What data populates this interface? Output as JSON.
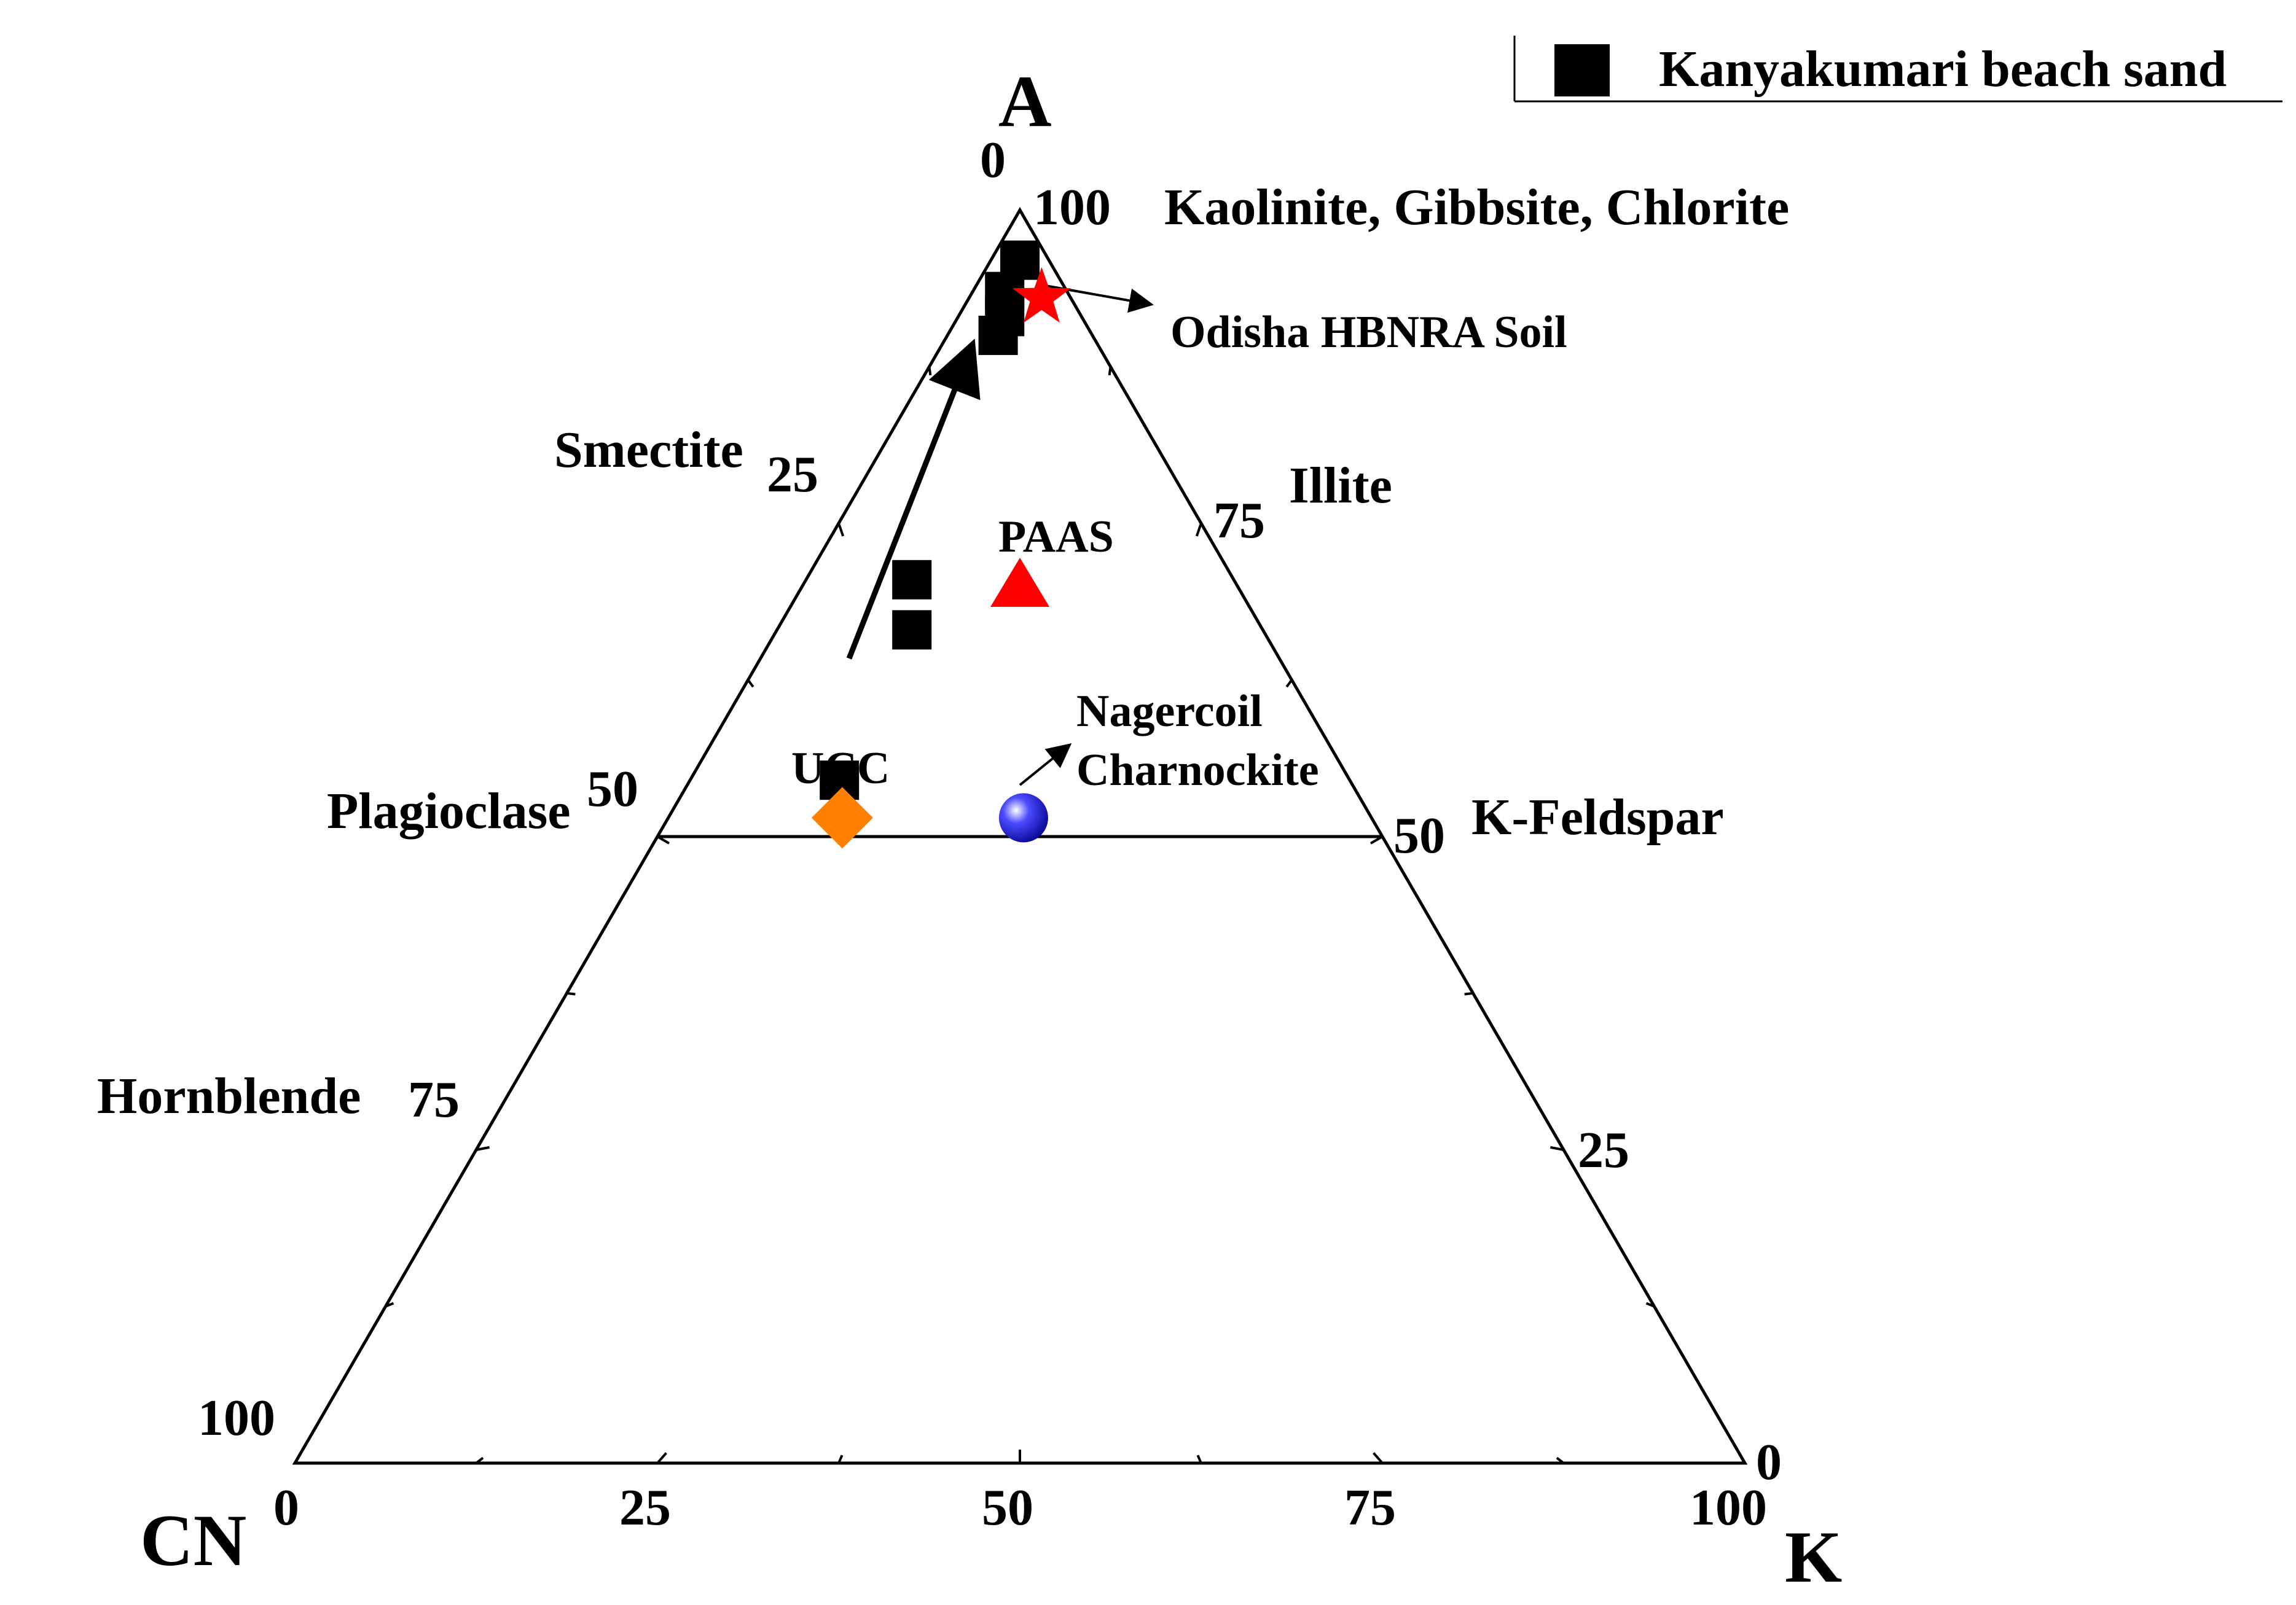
{
  "chart_data": {
    "type": "scatter",
    "subtype": "ternary",
    "vertices": {
      "top": "A",
      "left": "CN",
      "right": "K"
    },
    "legend": {
      "placement": "top-right",
      "entries": [
        {
          "name": "Kanyakumari beach sand",
          "marker": "square",
          "color": "#000000"
        }
      ]
    },
    "tick_labels": {
      "left_edge": [
        "100",
        "75",
        "50",
        "25",
        "0"
      ],
      "right_edge": [
        "0",
        "25",
        "50",
        "75",
        "100"
      ],
      "bottom_edge": [
        "0",
        "25",
        "50",
        "75",
        "100"
      ]
    },
    "edge_labels": [
      "Kaolinite, Gibbsite, Chlorite",
      "Smectite",
      "Illite",
      "Plagioclase",
      "K-Feldspar",
      "Hornblende"
    ],
    "series": [
      {
        "name": "Kanyakumari beach sand",
        "marker": "square",
        "color": "#000000",
        "points": [
          {
            "A": 96,
            "CN": 2,
            "K": 2
          },
          {
            "A": 93.5,
            "CN": 4.3,
            "K": 2.2
          },
          {
            "A": 91.5,
            "CN": 5.3,
            "K": 3.2
          },
          {
            "A": 90,
            "CN": 6.5,
            "K": 3.5
          },
          {
            "A": 70.5,
            "CN": 22.2,
            "K": 7.3
          },
          {
            "A": 66.5,
            "CN": 24.2,
            "K": 9.3
          },
          {
            "A": 54.5,
            "CN": 35.2,
            "K": 10.3
          }
        ]
      },
      {
        "name": "Odisha HBNRA Soil",
        "marker": "star",
        "color": "#ff0000",
        "points": [
          {
            "A": 93,
            "CN": 2,
            "K": 5
          }
        ]
      },
      {
        "name": "PAAS",
        "marker": "triangle",
        "color": "#ff0000",
        "points": [
          {
            "A": 70,
            "CN": 15,
            "K": 15
          }
        ]
      },
      {
        "name": "UCC",
        "marker": "diamond",
        "color": "#ff8000",
        "points": [
          {
            "A": 51.5,
            "CN": 36.5,
            "K": 12
          }
        ]
      },
      {
        "name": "Nagercoil Charnockite",
        "marker": "sphere",
        "color": "#1a1aff",
        "points": [
          {
            "A": 51.5,
            "CN": 24,
            "K": 24.5
          }
        ]
      }
    ],
    "annotations": [
      "Odisha HBNRA Soil",
      "PAAS",
      "UCC",
      "Nagercoil",
      "Charnockite"
    ]
  },
  "labels": {
    "vertex_a": "A",
    "vertex_cn": "CN",
    "vertex_k": "K",
    "legend_text": "Kanyakumari beach sand",
    "kaolinite": "Kaolinite, Gibbsite, Chlorite",
    "smectite": "Smectite",
    "illite": "Illite",
    "plagioclase": "Plagioclase",
    "kfeldspar": "K-Feldspar",
    "hornblende": "Hornblende",
    "odisha": "Odisha HBNRA Soil",
    "paas": "PAAS",
    "ucc": "UCC",
    "nagercoil": "Nagercoil",
    "charnockite": "Charnockite"
  }
}
